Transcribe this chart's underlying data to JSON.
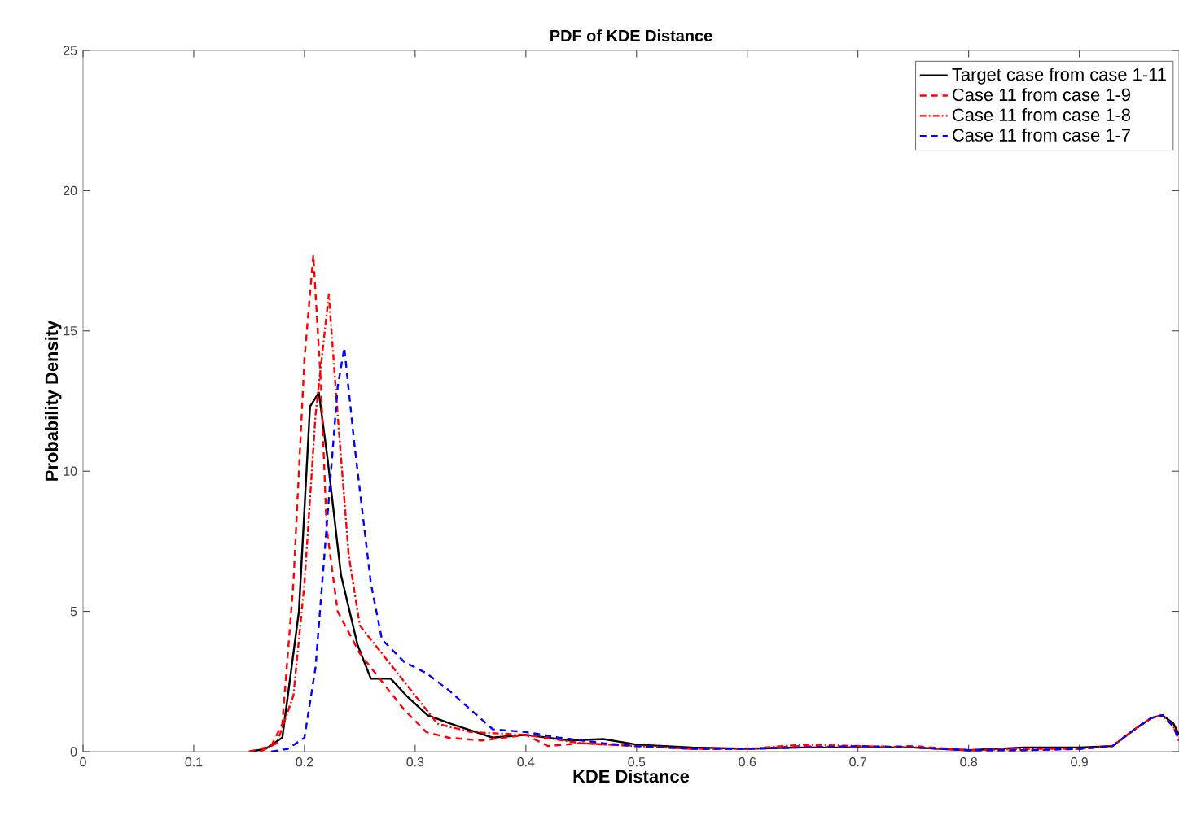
{
  "chart_data": {
    "type": "line",
    "title": "PDF of KDE Distance",
    "xlabel": "KDE Distance",
    "ylabel": "Probability Density",
    "xlim": [
      0,
      0.99
    ],
    "ylim": [
      0,
      25
    ],
    "xticks": [
      0,
      0.1,
      0.2,
      0.3,
      0.4,
      0.5,
      0.6,
      0.7,
      0.8,
      0.9
    ],
    "yticks": [
      0,
      5,
      10,
      15,
      20,
      25
    ],
    "legend": "top right",
    "grid": false,
    "series": [
      {
        "name": "Target case from case 1-11",
        "color": "#000000",
        "line_style": "solid",
        "x": [
          0.15,
          0.165,
          0.18,
          0.195,
          0.205,
          0.213,
          0.221,
          0.233,
          0.248,
          0.26,
          0.278,
          0.292,
          0.311,
          0.332,
          0.347,
          0.37,
          0.4,
          0.44,
          0.47,
          0.5,
          0.55,
          0.6,
          0.65,
          0.7,
          0.75,
          0.8,
          0.85,
          0.9,
          0.93,
          0.95,
          0.965,
          0.975,
          0.985,
          0.99
        ],
        "values": [
          0,
          0.1,
          0.5,
          5,
          12.3,
          12.8,
          10.4,
          6.3,
          3.8,
          2.6,
          2.6,
          2,
          1.3,
          1,
          0.8,
          0.5,
          0.6,
          0.4,
          0.45,
          0.25,
          0.15,
          0.1,
          0.15,
          0.15,
          0.15,
          0.05,
          0.15,
          0.15,
          0.2,
          0.8,
          1.2,
          1.3,
          1,
          0.6
        ]
      },
      {
        "name": "Case 11 from case 1-9",
        "color": "#ff0000",
        "line_style": "dashed",
        "x": [
          0.15,
          0.17,
          0.18,
          0.19,
          0.2,
          0.208,
          0.215,
          0.22,
          0.23,
          0.25,
          0.27,
          0.29,
          0.31,
          0.33,
          0.36,
          0.4,
          0.42,
          0.45,
          0.5,
          0.55,
          0.6,
          0.65,
          0.7,
          0.75,
          0.8,
          0.85,
          0.9,
          0.93,
          0.95,
          0.965,
          0.975,
          0.985,
          0.99
        ],
        "values": [
          0,
          0.2,
          1,
          6,
          14,
          17.7,
          13,
          8,
          5,
          3.5,
          2.5,
          1.5,
          0.7,
          0.5,
          0.4,
          0.6,
          0.2,
          0.3,
          0.2,
          0.1,
          0.1,
          0.2,
          0.15,
          0.2,
          0.05,
          0.05,
          0.1,
          0.2,
          0.8,
          1.2,
          1.3,
          0.9,
          0.4
        ]
      },
      {
        "name": "Case 11 from case 1-8",
        "color": "#ff0000",
        "line_style": "dashdot",
        "x": [
          0.16,
          0.175,
          0.19,
          0.2,
          0.21,
          0.222,
          0.23,
          0.24,
          0.25,
          0.27,
          0.28,
          0.3,
          0.32,
          0.35,
          0.4,
          0.45,
          0.5,
          0.55,
          0.6,
          0.65,
          0.7,
          0.75,
          0.8,
          0.85,
          0.9,
          0.93,
          0.95,
          0.965,
          0.975,
          0.985,
          0.99
        ],
        "values": [
          0,
          0.3,
          2,
          6,
          12,
          16.3,
          12,
          7,
          4.5,
          3.5,
          3,
          2,
          1,
          0.7,
          0.6,
          0.3,
          0.2,
          0.1,
          0.1,
          0.25,
          0.2,
          0.15,
          0.05,
          0.1,
          0.1,
          0.2,
          0.8,
          1.2,
          1.3,
          0.9,
          0.4
        ]
      },
      {
        "name": "Case 11 from case 1-7",
        "color": "#0000ff",
        "line_style": "dashed",
        "x": [
          0.17,
          0.185,
          0.2,
          0.21,
          0.22,
          0.23,
          0.236,
          0.245,
          0.26,
          0.27,
          0.29,
          0.31,
          0.33,
          0.35,
          0.37,
          0.4,
          0.43,
          0.47,
          0.5,
          0.55,
          0.6,
          0.65,
          0.7,
          0.75,
          0.8,
          0.85,
          0.9,
          0.93,
          0.95,
          0.965,
          0.975,
          0.985,
          0.99
        ],
        "values": [
          0,
          0.1,
          0.5,
          3,
          8,
          13,
          14.4,
          11,
          6,
          4,
          3.2,
          2.8,
          2.2,
          1.5,
          0.8,
          0.7,
          0.5,
          0.3,
          0.2,
          0.1,
          0.1,
          0.15,
          0.2,
          0.15,
          0.05,
          0.05,
          0.1,
          0.2,
          0.8,
          1.2,
          1.3,
          0.9,
          0.4
        ]
      }
    ]
  }
}
